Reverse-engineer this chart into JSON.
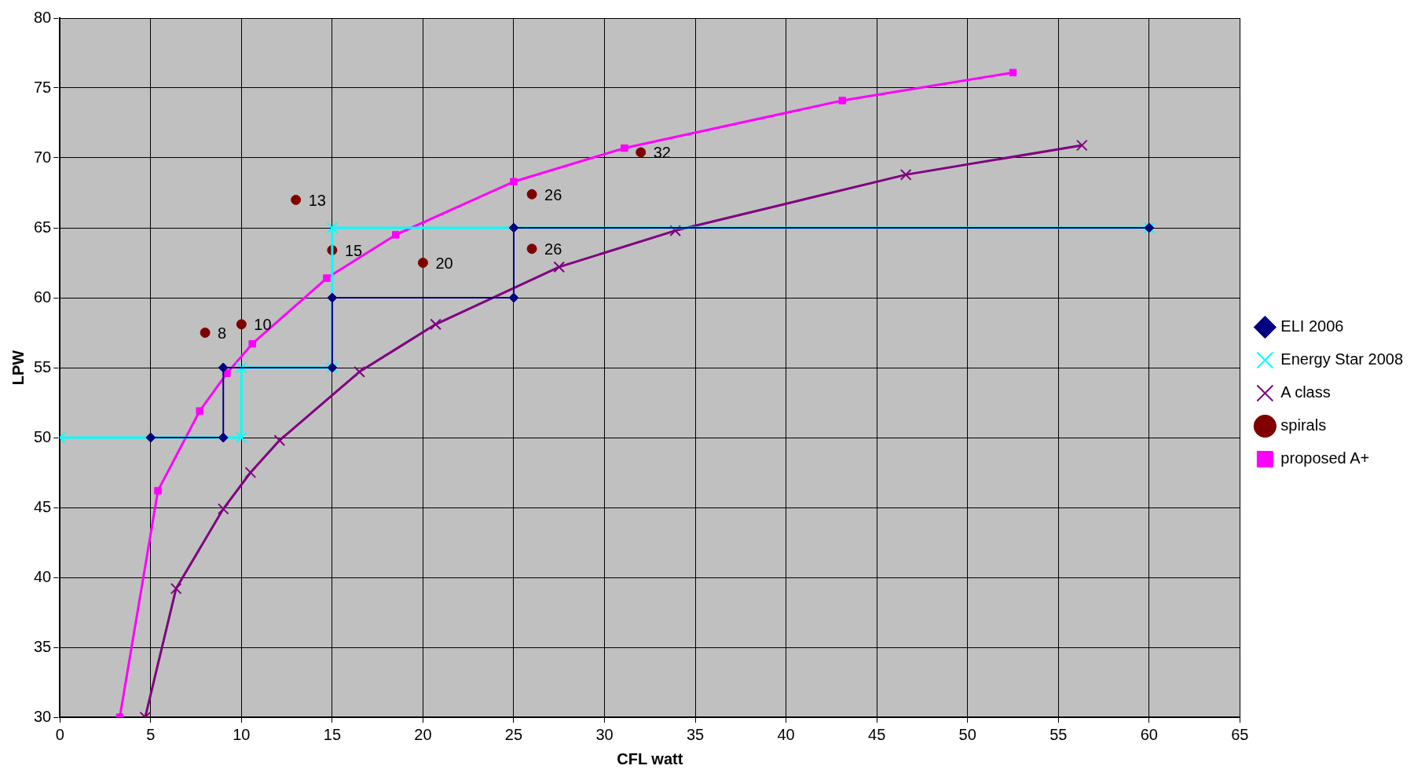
{
  "chart_data": {
    "type": "line",
    "xlabel": "CFL watt",
    "ylabel": "LPW",
    "xlim": [
      0,
      65
    ],
    "xticks": [
      0,
      5,
      10,
      15,
      20,
      25,
      30,
      35,
      40,
      45,
      50,
      55,
      60,
      65
    ],
    "ylim": [
      30,
      80
    ],
    "yticks": [
      30,
      35,
      40,
      45,
      50,
      55,
      60,
      65,
      70,
      75,
      80
    ],
    "grid": true,
    "annotations": [
      {
        "text": "8",
        "x": 8,
        "y": 57.5
      },
      {
        "text": "10",
        "x": 10,
        "y": 58.1
      },
      {
        "text": "13",
        "x": 13,
        "y": 67
      },
      {
        "text": "15",
        "x": 15,
        "y": 63.4
      },
      {
        "text": "20",
        "x": 20,
        "y": 62.5
      },
      {
        "text": "26",
        "x": 26,
        "y": 67.4
      },
      {
        "text": "26",
        "x": 26,
        "y": 63.5
      },
      {
        "text": "32",
        "x": 32,
        "y": 70.4
      }
    ],
    "legend": "right",
    "line_style": "solid",
    "series": [
      {
        "name": "ELI 2006",
        "color": "#000080",
        "marker": "diamond",
        "x": [
          5,
          9,
          9,
          15,
          15,
          25,
          25,
          60
        ],
        "values": [
          50,
          50,
          55,
          55,
          60,
          60,
          65,
          65
        ]
      },
      {
        "name": "Energy Star 2008",
        "color": "#00ffff",
        "marker": "cross",
        "x": [
          0,
          10,
          10,
          15,
          15,
          60
        ],
        "values": [
          50,
          50,
          55,
          55,
          65,
          65
        ]
      },
      {
        "name": "A class",
        "color": "#800080",
        "marker": "cross",
        "x": [
          4.7,
          6.4,
          9,
          10.5,
          12.1,
          16.5,
          20.7,
          27.5,
          33.9,
          46.6,
          56.3
        ],
        "values": [
          30,
          39.2,
          44.9,
          47.5,
          49.8,
          54.7,
          58.1,
          62.2,
          64.8,
          68.8,
          70.9
        ]
      },
      {
        "name": "spirals",
        "type": "scatter",
        "color": "#800000",
        "marker": "circle",
        "x": [
          8,
          10,
          13,
          15,
          20,
          26,
          26,
          32
        ],
        "values": [
          57.5,
          58.1,
          67,
          63.4,
          62.5,
          67.4,
          63.5,
          70.4
        ]
      },
      {
        "name": "proposed A+",
        "color": "#ff00ff",
        "marker": "square",
        "x": [
          3.3,
          5.4,
          7.7,
          9.2,
          10.6,
          14.7,
          18.5,
          25,
          31.1,
          43.1,
          52.5
        ],
        "values": [
          30,
          46.2,
          51.9,
          54.6,
          56.7,
          61.4,
          64.5,
          68.3,
          70.7,
          74.1,
          76.1
        ]
      }
    ]
  }
}
